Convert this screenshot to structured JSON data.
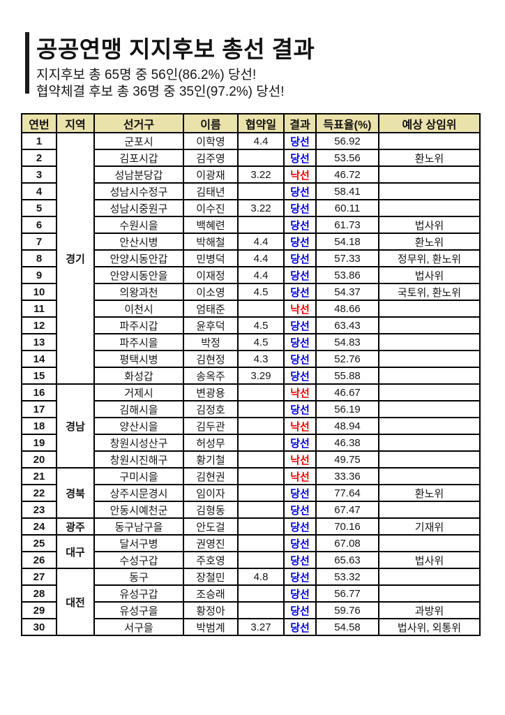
{
  "header": {
    "title": "공공연맹 지지후보 총선 결과",
    "subtitle1": "지지후보 총 65명 중 56인(86.2%) 당선!",
    "subtitle2": "협약체결 후보 총 36명 중 35인(97.2%) 당선!"
  },
  "colors": {
    "win": "#0000dd",
    "lose": "#ee0000",
    "header_bg": "#eae2ab",
    "title_bar": "#1a1a1a"
  },
  "table": {
    "columns": [
      "연번",
      "지역",
      "선거구",
      "이름",
      "협약일",
      "결과",
      "득표율(%)",
      "예상 상임위"
    ],
    "win_label": "당선",
    "lose_label": "낙선",
    "rows": [
      {
        "no": "1",
        "region": "경기",
        "district": "군포시",
        "name": "이학영",
        "date": "4.4",
        "result": "당선",
        "pct": "56.92",
        "committee": ""
      },
      {
        "no": "2",
        "region": "경기",
        "district": "김포시갑",
        "name": "김주영",
        "date": "",
        "result": "당선",
        "pct": "53.56",
        "committee": "환노위"
      },
      {
        "no": "3",
        "region": "경기",
        "district": "성남분당갑",
        "name": "이광재",
        "date": "3.22",
        "result": "낙선",
        "pct": "46.72",
        "committee": ""
      },
      {
        "no": "4",
        "region": "경기",
        "district": "성남시수정구",
        "name": "김태년",
        "date": "",
        "result": "당선",
        "pct": "58.41",
        "committee": ""
      },
      {
        "no": "5",
        "region": "경기",
        "district": "성남시중원구",
        "name": "이수진",
        "date": "3.22",
        "result": "당선",
        "pct": "60.11",
        "committee": ""
      },
      {
        "no": "6",
        "region": "경기",
        "district": "수원시을",
        "name": "백혜련",
        "date": "",
        "result": "당선",
        "pct": "61.73",
        "committee": "법사위"
      },
      {
        "no": "7",
        "region": "경기",
        "district": "안산시병",
        "name": "박해철",
        "date": "4.4",
        "result": "당선",
        "pct": "54.18",
        "committee": "환노위"
      },
      {
        "no": "8",
        "region": "경기",
        "district": "안양시동안갑",
        "name": "민병덕",
        "date": "4.4",
        "result": "당선",
        "pct": "57.33",
        "committee": "정무위, 환노위"
      },
      {
        "no": "9",
        "region": "경기",
        "district": "안양시동안을",
        "name": "이재정",
        "date": "4.4",
        "result": "당선",
        "pct": "53.86",
        "committee": "법사위"
      },
      {
        "no": "10",
        "region": "경기",
        "district": "의왕과천",
        "name": "이소영",
        "date": "4.5",
        "result": "당선",
        "pct": "54.37",
        "committee": "국토위, 환노위"
      },
      {
        "no": "11",
        "region": "경기",
        "district": "이천시",
        "name": "엄태준",
        "date": "",
        "result": "낙선",
        "pct": "48.66",
        "committee": ""
      },
      {
        "no": "12",
        "region": "경기",
        "district": "파주시갑",
        "name": "윤후덕",
        "date": "4.5",
        "result": "당선",
        "pct": "63.43",
        "committee": ""
      },
      {
        "no": "13",
        "region": "경기",
        "district": "파주시을",
        "name": "박정",
        "date": "4.5",
        "result": "당선",
        "pct": "54.83",
        "committee": ""
      },
      {
        "no": "14",
        "region": "경기",
        "district": "평택시병",
        "name": "김현정",
        "date": "4.3",
        "result": "당선",
        "pct": "52.76",
        "committee": ""
      },
      {
        "no": "15",
        "region": "경기",
        "district": "화성갑",
        "name": "송옥주",
        "date": "3.29",
        "result": "당선",
        "pct": "55.88",
        "committee": ""
      },
      {
        "no": "16",
        "region": "경남",
        "district": "거제시",
        "name": "변광용",
        "date": "",
        "result": "낙선",
        "pct": "46.67",
        "committee": ""
      },
      {
        "no": "17",
        "region": "경남",
        "district": "김해시을",
        "name": "김정호",
        "date": "",
        "result": "당선",
        "pct": "56.19",
        "committee": ""
      },
      {
        "no": "18",
        "region": "경남",
        "district": "양산시을",
        "name": "김두관",
        "date": "",
        "result": "낙선",
        "pct": "48.94",
        "committee": ""
      },
      {
        "no": "19",
        "region": "경남",
        "district": "창원시성산구",
        "name": "허성무",
        "date": "",
        "result": "당선",
        "pct": "46.38",
        "committee": ""
      },
      {
        "no": "20",
        "region": "경남",
        "district": "창원시진해구",
        "name": "황기철",
        "date": "",
        "result": "낙선",
        "pct": "49.75",
        "committee": ""
      },
      {
        "no": "21",
        "region": "경북",
        "district": "구미시을",
        "name": "김현권",
        "date": "",
        "result": "낙선",
        "pct": "33.36",
        "committee": ""
      },
      {
        "no": "22",
        "region": "경북",
        "district": "상주시문경시",
        "name": "임이자",
        "date": "",
        "result": "당선",
        "pct": "77.64",
        "committee": "환노위"
      },
      {
        "no": "23",
        "region": "경북",
        "district": "안동시예천군",
        "name": "김형동",
        "date": "",
        "result": "당선",
        "pct": "67.47",
        "committee": ""
      },
      {
        "no": "24",
        "region": "광주",
        "district": "동구남구을",
        "name": "안도걸",
        "date": "",
        "result": "당선",
        "pct": "70.16",
        "committee": "기재위"
      },
      {
        "no": "25",
        "region": "대구",
        "district": "달서구병",
        "name": "권영진",
        "date": "",
        "result": "당선",
        "pct": "67.08",
        "committee": ""
      },
      {
        "no": "26",
        "region": "대구",
        "district": "수성구갑",
        "name": "주호영",
        "date": "",
        "result": "당선",
        "pct": "65.63",
        "committee": "법사위"
      },
      {
        "no": "27",
        "region": "대전",
        "district": "동구",
        "name": "장철민",
        "date": "4.8",
        "result": "당선",
        "pct": "53.32",
        "committee": ""
      },
      {
        "no": "28",
        "region": "대전",
        "district": "유성구갑",
        "name": "조승래",
        "date": "",
        "result": "당선",
        "pct": "56.77",
        "committee": ""
      },
      {
        "no": "29",
        "region": "대전",
        "district": "유성구을",
        "name": "황정아",
        "date": "",
        "result": "당선",
        "pct": "59.76",
        "committee": "과방위"
      },
      {
        "no": "30",
        "region": "대전",
        "district": "서구을",
        "name": "박범계",
        "date": "3.27",
        "result": "당선",
        "pct": "54.58",
        "committee": "법사위, 외통위"
      }
    ]
  }
}
